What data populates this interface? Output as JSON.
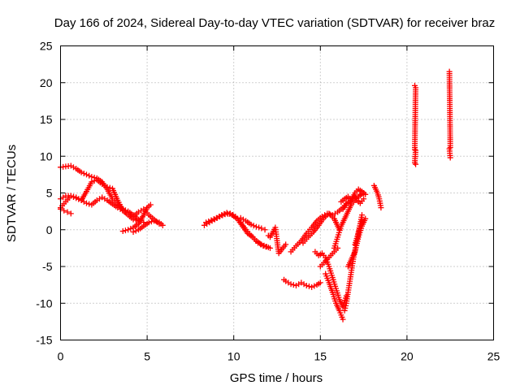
{
  "chart_data": {
    "type": "scatter",
    "title": "Day 166 of 2024, Sidereal Day-to-day VTEC variation (SDTVAR) for receiver braz",
    "xlabel": "GPS time / hours",
    "ylabel": "SDTVAR / TECUs",
    "xlim": [
      0,
      25
    ],
    "ylim": [
      -15,
      25
    ],
    "xticks": [
      0,
      5,
      10,
      15,
      20,
      25
    ],
    "yticks": [
      -15,
      -10,
      -5,
      0,
      5,
      10,
      15,
      20,
      25
    ],
    "grid": true,
    "marker": "plus",
    "color": "#ff0000",
    "series": [
      {
        "name": "SDTVAR",
        "segments": [
          {
            "x": [
              0.0,
              0.3,
              0.6,
              0.9,
              1.2,
              1.5,
              1.8,
              2.1,
              2.4,
              2.7,
              3.0,
              3.3,
              3.6,
              3.9,
              4.2,
              4.5,
              4.8
            ],
            "y": [
              8.5,
              8.6,
              8.7,
              8.3,
              7.8,
              7.5,
              7.2,
              7.0,
              6.5,
              5.5,
              4.2,
              3.5,
              2.8,
              2.5,
              2.0,
              1.4,
              1.0
            ]
          },
          {
            "x": [
              0.0,
              0.3,
              0.6,
              0.9,
              1.2,
              1.5,
              1.8,
              2.1,
              2.4,
              2.7,
              3.0,
              3.3,
              3.6,
              3.9,
              4.2,
              4.5
            ],
            "y": [
              4.2,
              4.6,
              4.6,
              4.3,
              4.0,
              3.6,
              3.4,
              4.0,
              4.4,
              4.0,
              3.5,
              3.0,
              2.6,
              2.0,
              1.4,
              1.2
            ]
          },
          {
            "x": [
              0.0,
              0.3,
              0.6,
              0.9,
              1.2,
              1.5,
              1.8,
              2.1,
              2.4,
              2.7,
              3.0,
              3.3,
              3.6,
              3.9,
              4.2,
              4.5,
              4.8,
              5.1,
              5.4,
              5.7
            ],
            "y": [
              3.0,
              3.8,
              4.6,
              4.4,
              4.0,
              5.2,
              6.5,
              6.8,
              6.2,
              5.8,
              5.6,
              4.0,
              2.6,
              2.2,
              1.8,
              2.4,
              2.8,
              2.0,
              1.4,
              0.8
            ]
          },
          {
            "x": [
              0.0,
              0.2,
              0.4,
              0.6
            ],
            "y": [
              2.8,
              2.6,
              2.4,
              2.2
            ]
          },
          {
            "x": [
              3.6,
              3.9,
              4.2,
              4.5,
              4.8,
              5.0,
              5.2
            ],
            "y": [
              -0.2,
              0.0,
              0.3,
              0.8,
              2.0,
              3.0,
              3.4
            ]
          },
          {
            "x": [
              4.2,
              4.5,
              4.8,
              5.1,
              5.4,
              5.7,
              5.9
            ],
            "y": [
              -0.3,
              0.0,
              0.5,
              1.0,
              1.2,
              1.0,
              0.6
            ]
          },
          {
            "x": [
              8.3,
              8.6,
              8.9,
              9.2,
              9.5,
              9.8,
              10.1,
              10.4,
              10.7,
              11.0,
              11.3,
              11.6,
              11.9,
              12.1
            ],
            "y": [
              0.6,
              1.0,
              1.4,
              1.8,
              2.1,
              2.2,
              1.8,
              1.0,
              0.0,
              -0.8,
              -1.5,
              -2.0,
              -2.3,
              -2.5
            ]
          },
          {
            "x": [
              8.4,
              8.7,
              9.0,
              9.3,
              9.6,
              9.9,
              10.2,
              10.5,
              10.8,
              11.1,
              11.4,
              11.7,
              12.0
            ],
            "y": [
              1.0,
              1.3,
              1.6,
              2.0,
              2.3,
              2.0,
              1.5,
              0.5,
              -0.5,
              -1.0,
              -1.8,
              -2.2,
              -2.4
            ]
          },
          {
            "x": [
              10.4,
              10.7,
              11.0,
              11.3,
              11.6,
              11.8
            ],
            "y": [
              1.6,
              1.2,
              0.7,
              0.4,
              0.2,
              0.0
            ]
          },
          {
            "x": [
              12.0,
              12.1,
              12.4,
              12.5,
              12.6,
              13.0
            ],
            "y": [
              -0.8,
              -1.0,
              0.3,
              -1.5,
              -3.2,
              -2.0
            ]
          },
          {
            "x": [
              12.9,
              13.0,
              13.3,
              13.6,
              13.9,
              14.2,
              14.5,
              14.8,
              15.0
            ],
            "y": [
              -6.8,
              -7.0,
              -7.4,
              -7.6,
              -7.2,
              -7.6,
              -7.8,
              -7.5,
              -7.2
            ]
          },
          {
            "x": [
              13.3,
              13.6,
              13.9,
              14.2,
              14.5,
              14.8,
              15.1,
              15.4,
              15.7,
              16.0,
              16.3,
              16.6,
              16.9,
              17.2,
              17.5
            ],
            "y": [
              -3.0,
              -2.2,
              -1.5,
              -0.5,
              0.3,
              1.2,
              1.8,
              2.2,
              2.0,
              2.4,
              3.0,
              3.8,
              4.2,
              4.5,
              5.0
            ]
          },
          {
            "x": [
              14.0,
              14.3,
              14.6,
              14.9,
              15.2,
              15.5,
              15.8,
              16.1
            ],
            "y": [
              -1.8,
              -1.0,
              -0.3,
              0.6,
              1.6,
              2.2,
              1.5,
              0.0
            ]
          },
          {
            "x": [
              14.7,
              14.9,
              15.1,
              15.3,
              15.5,
              15.7,
              15.9,
              16.1,
              16.3,
              16.5
            ],
            "y": [
              -3.0,
              -3.5,
              -3.2,
              -3.8,
              -5.0,
              -6.5,
              -8.0,
              -9.5,
              -10.5,
              -9.0
            ]
          },
          {
            "x": [
              15.0,
              15.2,
              15.4,
              15.6,
              15.8,
              16.0
            ],
            "y": [
              -5.0,
              -4.5,
              -4.0,
              -3.5,
              -3.0,
              -2.5
            ]
          },
          {
            "x": [
              15.3,
              15.5,
              15.7,
              15.9,
              16.1,
              16.3
            ],
            "y": [
              -6.0,
              -7.2,
              -8.5,
              -10.0,
              -11.0,
              -12.2
            ]
          },
          {
            "x": [
              15.8,
              16.0,
              16.2,
              16.4,
              16.6,
              16.8,
              17.0,
              17.2,
              17.4
            ],
            "y": [
              -2.5,
              -1.0,
              0.5,
              1.5,
              2.5,
              3.5,
              4.0,
              4.5,
              5.0
            ]
          },
          {
            "x": [
              16.4,
              16.5,
              16.6,
              16.7,
              16.8,
              16.9,
              17.0,
              17.1,
              17.2,
              17.3,
              17.4
            ],
            "y": [
              -11.0,
              -10.0,
              -8.5,
              -7.0,
              -5.5,
              -4.0,
              -2.8,
              -1.5,
              -0.5,
              0.5,
              1.2
            ]
          },
          {
            "x": [
              16.6,
              16.8,
              17.0,
              17.2,
              17.4,
              17.6
            ],
            "y": [
              -5.0,
              -4.0,
              -3.0,
              -1.0,
              0.5,
              1.5
            ]
          },
          {
            "x": [
              16.2,
              16.4,
              16.6,
              16.8,
              17.0,
              17.2,
              17.4,
              17.6
            ],
            "y": [
              3.8,
              4.2,
              4.5,
              4.0,
              5.0,
              5.5,
              5.2,
              4.8
            ]
          },
          {
            "x": [
              16.3,
              16.5,
              16.7,
              16.9,
              17.1,
              17.3,
              17.5
            ],
            "y": [
              2.8,
              3.5,
              3.8,
              4.5,
              4.0,
              3.6,
              4.2
            ]
          },
          {
            "x": [
              17.0,
              17.1,
              17.2,
              17.3,
              17.4
            ],
            "y": [
              -2.0,
              -1.2,
              -0.3,
              0.8,
              2.0
            ]
          },
          {
            "x": [
              18.1,
              18.2,
              18.3,
              18.4,
              18.5
            ],
            "y": [
              6.0,
              5.5,
              5.0,
              4.2,
              3.0
            ]
          },
          {
            "x": [
              20.45,
              20.5,
              20.45,
              20.5,
              20.45,
              20.5
            ],
            "y": [
              19.6,
              19.3,
              10.9,
              10.8,
              9.1,
              8.9
            ]
          },
          {
            "x": [
              22.45,
              22.5,
              22.45,
              22.5
            ],
            "y": [
              21.5,
              11.2,
              11.0,
              9.8
            ]
          }
        ]
      }
    ]
  }
}
